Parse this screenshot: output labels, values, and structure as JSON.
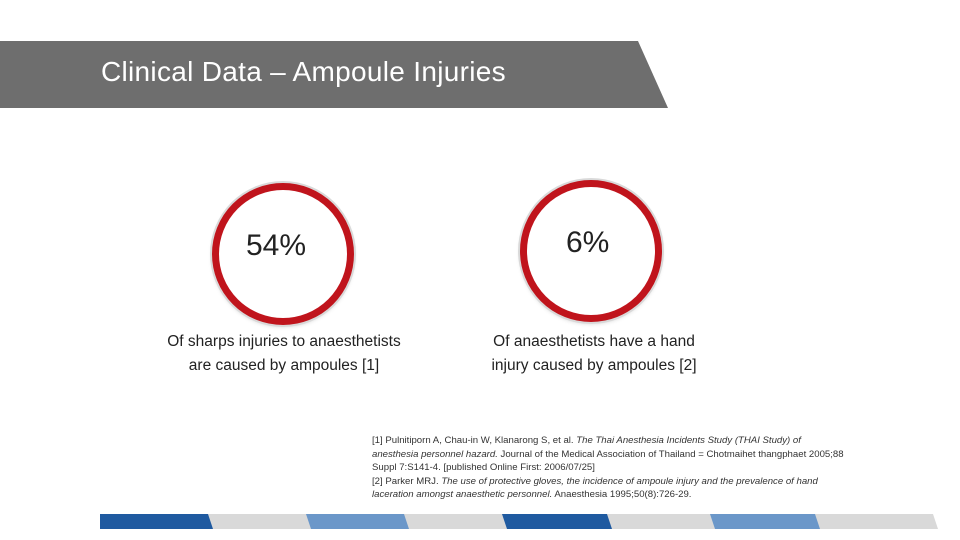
{
  "slide": {
    "title": "Clinical Data –  Ampoule Injuries"
  },
  "stats": [
    {
      "value": "54%",
      "caption_line1": "Of sharps injuries to anaesthetists",
      "caption_line2": "are caused by ampoules [1]"
    },
    {
      "value": "6%",
      "caption_line1": "Of anaesthetists have a hand",
      "caption_line2": "injury caused by ampoules [2]"
    }
  ],
  "references": {
    "ref1_lead": " [1] Pulnitiporn A, Chau-in W, Klanarong S, et al. ",
    "ref1_title_a": "The Thai Anesthesia Incidents Study (THAI Study) of",
    "ref1_title_b": "anesthesia personnel hazard.",
    "ref1_rest_b": " Journal of the Medical Association of Thailand = Chotmaihet thangphaet 2005;88",
    "ref1_line3": "Suppl 7:S141-4. [published Online First: 2006/07/25]",
    "ref2_lead": "[2] Parker MRJ. ",
    "ref2_title_a": "The use of protective gloves, the incidence of ampoule injury and the prevalence of hand",
    "ref2_title_b": "laceration amongst anaesthetic personnel.",
    "ref2_rest_b": " Anaesthesia 1995;50(8):726-29."
  },
  "colors": {
    "banner": "#6e6e6e",
    "ring": "#c0141c",
    "bar_dark_blue": "#1f5aa0",
    "bar_light_blue": "#6b97c9",
    "bar_gray": "#d9d9d9"
  }
}
